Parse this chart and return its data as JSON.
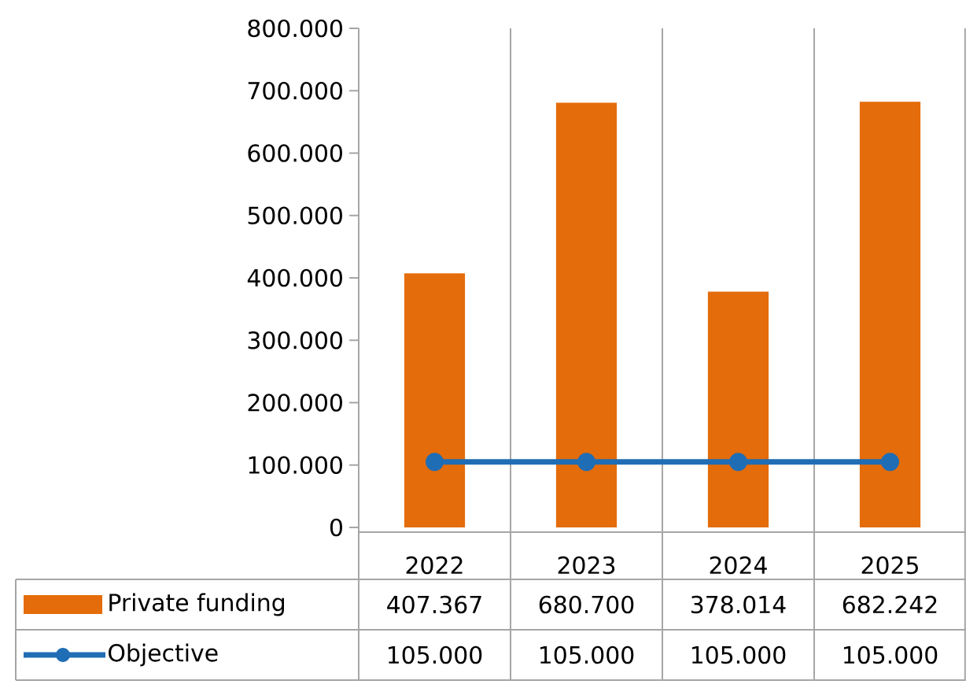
{
  "chart_data": {
    "type": "bar",
    "categories": [
      "2022",
      "2023",
      "2024",
      "2025"
    ],
    "series": [
      {
        "name": "Private funding",
        "color": "#e46c0a",
        "values": [
          407367,
          680700,
          378014,
          682242
        ],
        "value_labels": [
          "407.367",
          "680.700",
          "378.014",
          "682.242"
        ]
      },
      {
        "name": "Objective",
        "type": "line",
        "color": "#1f6db5",
        "marker": "circle",
        "values": [
          105000,
          105000,
          105000,
          105000
        ],
        "value_labels": [
          "105.000",
          "105.000",
          "105.000",
          "105.000"
        ]
      }
    ],
    "ylim": [
      0,
      800000
    ],
    "yticks": [
      0,
      {
        "value": 100000,
        "label": "100.000"
      },
      {
        "value": 200000,
        "label": "200.000"
      },
      {
        "value": 300000,
        "label": "300.000"
      },
      {
        "value": 400000,
        "label": "400.000"
      },
      {
        "value": 500000,
        "label": "500.000"
      },
      {
        "value": 600000,
        "label": "600.000"
      },
      {
        "value": 700000,
        "label": "700.000"
      },
      {
        "value": 800000,
        "label": "800.000"
      }
    ],
    "legend": "bottom"
  }
}
